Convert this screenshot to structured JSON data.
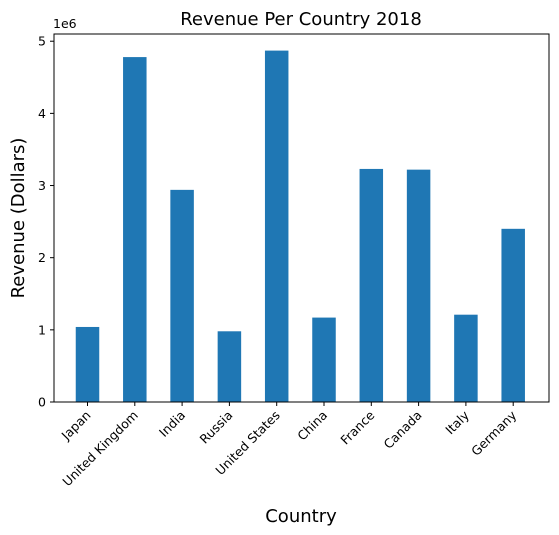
{
  "chart_data": {
    "type": "bar",
    "title": "Revenue Per Country 2018",
    "xlabel": "Country",
    "ylabel": "Revenue (Dollars)",
    "y_offset_label": "1e6",
    "categories": [
      "Japan",
      "United Kingdom",
      "India",
      "Russia",
      "United States",
      "China",
      "France",
      "Canada",
      "Italy",
      "Germany"
    ],
    "values": [
      1040000,
      4780000,
      2940000,
      980000,
      4870000,
      1170000,
      3230000,
      3220000,
      1210000,
      2400000
    ],
    "ylim": [
      0,
      5100000
    ],
    "yticks": [
      0,
      1000000,
      2000000,
      3000000,
      4000000,
      5000000
    ],
    "ytick_labels": [
      "0",
      "1",
      "2",
      "3",
      "4",
      "5"
    ],
    "bar_color": "#1f77b4",
    "grid": false,
    "legend": "none"
  }
}
